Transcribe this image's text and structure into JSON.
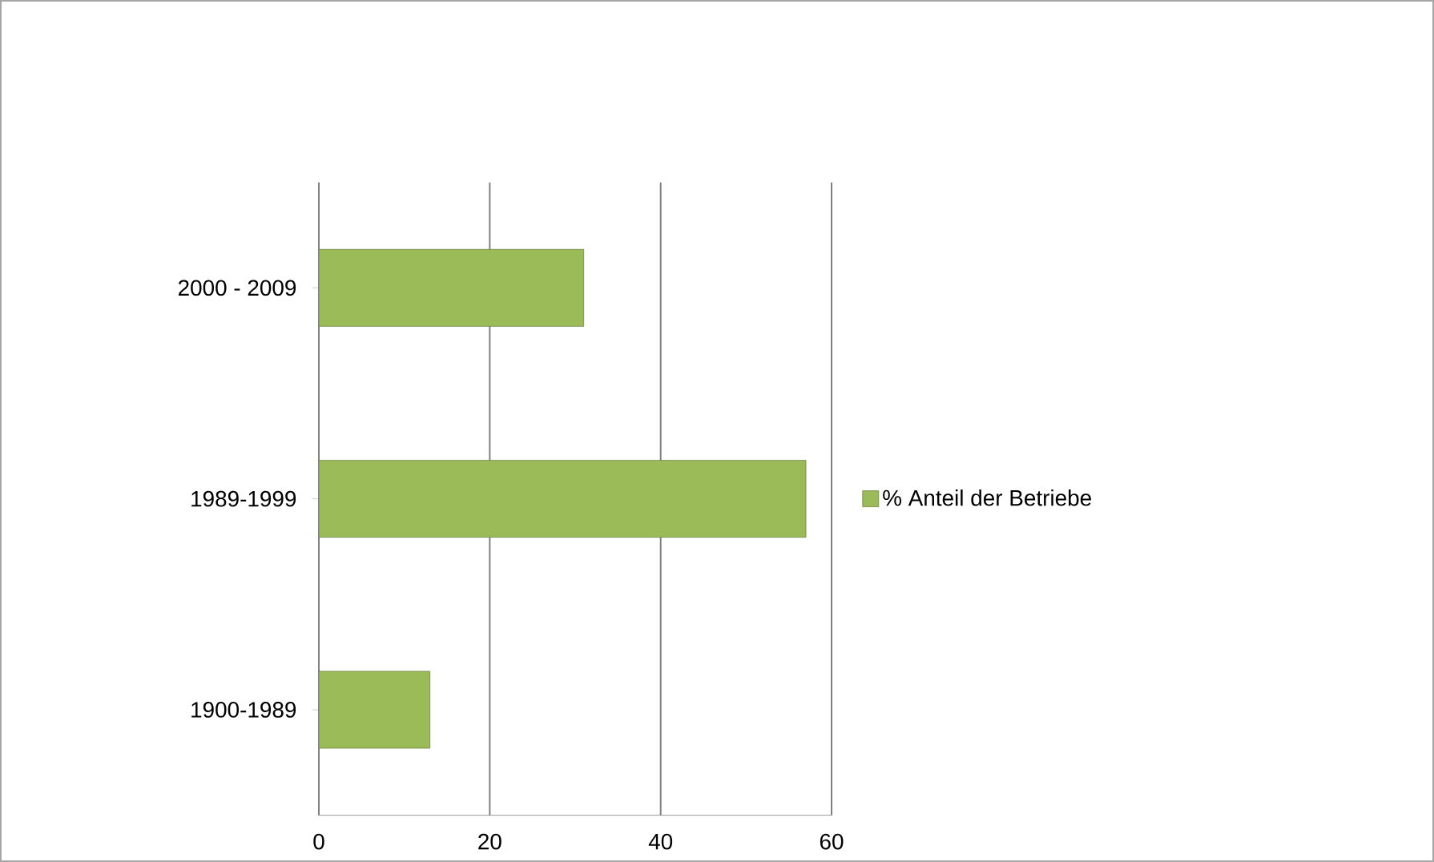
{
  "chart_data": {
    "type": "bar",
    "orientation": "horizontal",
    "categories": [
      "2000 - 2009",
      "1989-1999",
      "1900-1989"
    ],
    "series": [
      {
        "name": "% Anteil der  Betriebe",
        "color": "#9bbb59",
        "values": [
          31,
          57,
          13
        ]
      }
    ],
    "xlim": [
      0,
      60
    ],
    "xticks": [
      0,
      20,
      40,
      60
    ],
    "grid": "x",
    "legend": "right"
  }
}
